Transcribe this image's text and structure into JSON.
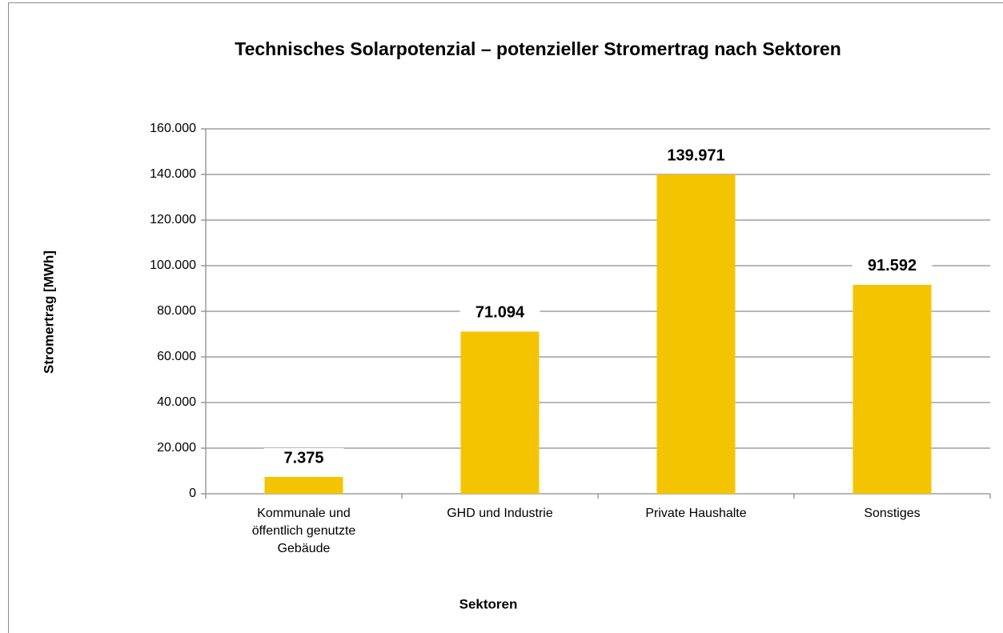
{
  "chart_data": {
    "type": "bar",
    "title": "Technisches Solarpotenzial – potenzieller Stromertrag nach Sektoren",
    "x_label": "Sektoren",
    "y_label": "Stromertrag [MWh]",
    "categories": [
      "Kommunale und öffentlich genutzte Gebäude",
      "GHD und Industrie",
      "Private Haushalte",
      "Sonstiges"
    ],
    "values": [
      7375,
      71094,
      139971,
      91592
    ],
    "value_labels": [
      "7.375",
      "71.094",
      "139.971",
      "91.592"
    ],
    "color": "#f5c400",
    "ylim": [
      0,
      160000
    ],
    "yticks": [
      0,
      {
        "value": 20000,
        "label": "20.000"
      },
      {
        "value": 40000,
        "label": "40.000"
      },
      {
        "value": 60000,
        "label": "60.000"
      },
      {
        "value": 80000,
        "label": "80.000"
      },
      {
        "value": 100000,
        "label": "100.000"
      },
      {
        "value": 120000,
        "label": "120.000"
      },
      {
        "value": 140000,
        "label": "140.000"
      },
      {
        "value": 160000,
        "label": "160.000"
      }
    ],
    "grid": true
  }
}
